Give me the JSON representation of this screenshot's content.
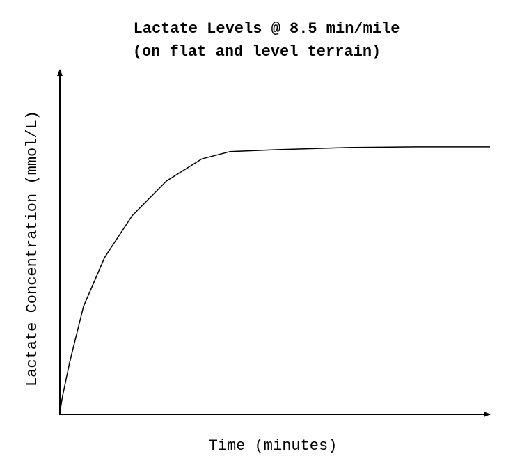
{
  "chart_data": {
    "type": "line",
    "title": "Lactate Levels @ 8.5 min/mile",
    "subtitle": "(on flat and level terrain)",
    "x_label": "Time (minutes)",
    "y_label": "Lactate Concentration (mmol/L)",
    "xlim": [
      0,
      100
    ],
    "ylim": [
      0,
      100
    ],
    "x": [
      0,
      0.6,
      2.3,
      5.5,
      10.4,
      16.8,
      24.8,
      33,
      39.5,
      50.8,
      67,
      83.2,
      100
    ],
    "series": [
      {
        "color": "#000000",
        "values": [
          0.6,
          5.1,
          15.2,
          31.3,
          45.5,
          57.6,
          67.7,
          74.1,
          76.2,
          76.8,
          77.4,
          77.6,
          77.6
        ]
      }
    ]
  }
}
